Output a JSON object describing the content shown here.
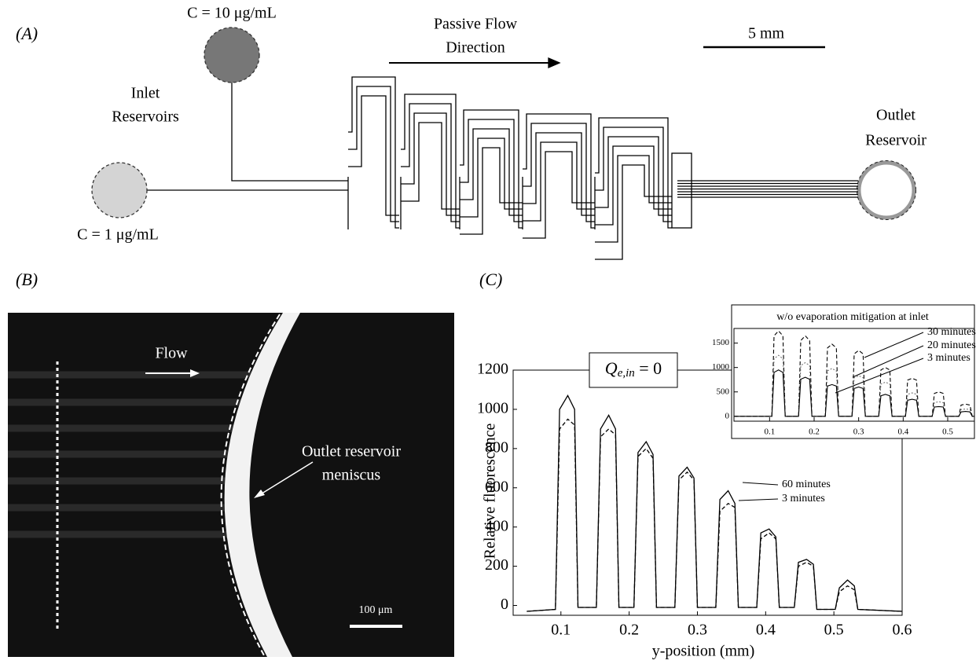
{
  "panel_labels": [
    "(A)",
    "(B)",
    "(C)"
  ],
  "panel_a": {
    "reservoir_high": "C = 10 μg/mL",
    "reservoir_low": "C = 1 μg/mL",
    "inlet_label": [
      "Inlet",
      "Reservoirs"
    ],
    "flow_label": [
      "Passive Flow",
      "Direction"
    ],
    "scale_bar": "5 mm",
    "outlet_label": [
      "Outlet",
      "Reservoir"
    ]
  },
  "panel_b": {
    "flow": "Flow",
    "meniscus_label": [
      "Outlet reservoir",
      "meniscus"
    ],
    "scale_bar": "100 μm"
  },
  "chart_data": [
    {
      "type": "line",
      "x_label": "y-position (mm)",
      "y_label": "Relative fluorescence",
      "annotation": {
        "symbol": "Q",
        "subscript": "e,in",
        "rest": " = 0"
      },
      "x": [
        0.05,
        0.092,
        0.098,
        0.11,
        0.12,
        0.125,
        0.152,
        0.158,
        0.17,
        0.18,
        0.185,
        0.207,
        0.213,
        0.225,
        0.235,
        0.24,
        0.267,
        0.273,
        0.285,
        0.295,
        0.3,
        0.327,
        0.333,
        0.345,
        0.355,
        0.36,
        0.387,
        0.393,
        0.405,
        0.415,
        0.42,
        0.442,
        0.448,
        0.46,
        0.47,
        0.475,
        0.502,
        0.508,
        0.52,
        0.53,
        0.535,
        0.6
      ],
      "series": [
        {
          "name": "60 minutes",
          "color": "#000000",
          "dash": "solid",
          "values": [
            -30,
            -20,
            1000,
            1070,
            1000,
            -10,
            -10,
            900,
            970,
            900,
            -10,
            -10,
            780,
            835,
            770,
            -10,
            -10,
            660,
            705,
            650,
            -10,
            -10,
            540,
            585,
            520,
            -10,
            -10,
            370,
            390,
            350,
            -10,
            -10,
            220,
            235,
            210,
            -20,
            -20,
            90,
            130,
            100,
            -20,
            -30
          ]
        },
        {
          "name": "3 minutes",
          "color": "#000000",
          "dash": "dashed",
          "values": [
            -30,
            -20,
            900,
            950,
            920,
            -10,
            -10,
            860,
            900,
            870,
            -10,
            -10,
            760,
            800,
            750,
            -10,
            -10,
            640,
            680,
            640,
            -10,
            -10,
            480,
            520,
            500,
            -10,
            -10,
            340,
            370,
            340,
            -10,
            -10,
            200,
            220,
            200,
            -20,
            -20,
            70,
            100,
            80,
            -20,
            -30
          ]
        }
      ],
      "xlim": [
        0.03,
        0.6
      ],
      "ylim": [
        -50,
        1200
      ],
      "xticks": [
        0.1,
        0.2,
        0.3,
        0.4,
        0.5,
        0.6
      ],
      "yticks": [
        0,
        200,
        400,
        600,
        800,
        1000,
        1200
      ]
    },
    {
      "type": "line",
      "title": "w/o evaporation mitigation at inlet",
      "x": [
        0.02,
        0.105,
        0.11,
        0.12,
        0.13,
        0.135,
        0.165,
        0.17,
        0.18,
        0.19,
        0.195,
        0.225,
        0.23,
        0.24,
        0.25,
        0.255,
        0.285,
        0.29,
        0.3,
        0.31,
        0.315,
        0.345,
        0.35,
        0.36,
        0.37,
        0.375,
        0.405,
        0.41,
        0.42,
        0.43,
        0.435,
        0.465,
        0.47,
        0.48,
        0.49,
        0.495,
        0.525,
        0.53,
        0.54,
        0.55,
        0.555,
        0.56
      ],
      "series": [
        {
          "name": "30 minutes",
          "color": "#000000",
          "dash": "dashed",
          "values": [
            0,
            0,
            1650,
            1750,
            1650,
            0,
            0,
            1550,
            1650,
            1550,
            0,
            0,
            1400,
            1480,
            1400,
            0,
            0,
            1280,
            1350,
            1280,
            0,
            0,
            950,
            1000,
            950,
            0,
            0,
            740,
            780,
            740,
            0,
            0,
            470,
            500,
            470,
            0,
            0,
            230,
            250,
            230,
            0,
            0
          ]
        },
        {
          "name": "20 minutes",
          "color": "#777777",
          "dash": "dotted",
          "values": [
            0,
            0,
            1180,
            1250,
            1180,
            0,
            0,
            1040,
            1100,
            1040,
            0,
            0,
            930,
            980,
            930,
            0,
            0,
            790,
            830,
            790,
            0,
            0,
            660,
            700,
            660,
            0,
            0,
            450,
            480,
            450,
            0,
            0,
            280,
            300,
            280,
            0,
            0,
            140,
            150,
            140,
            0,
            0
          ]
        },
        {
          "name": "3 minutes",
          "color": "#000000",
          "dash": "solid",
          "values": [
            0,
            0,
            900,
            950,
            900,
            0,
            0,
            760,
            800,
            760,
            0,
            0,
            620,
            650,
            620,
            0,
            0,
            570,
            600,
            570,
            0,
            0,
            420,
            450,
            420,
            0,
            0,
            330,
            350,
            330,
            0,
            0,
            190,
            200,
            190,
            0,
            0,
            90,
            100,
            90,
            0,
            0
          ]
        }
      ],
      "xlim": [
        0.02,
        0.56
      ],
      "ylim": [
        -100,
        1800
      ],
      "xticks": [
        0.1,
        0.2,
        0.3,
        0.4,
        0.5
      ],
      "yticks": [
        0,
        500,
        1000,
        1500
      ]
    }
  ]
}
